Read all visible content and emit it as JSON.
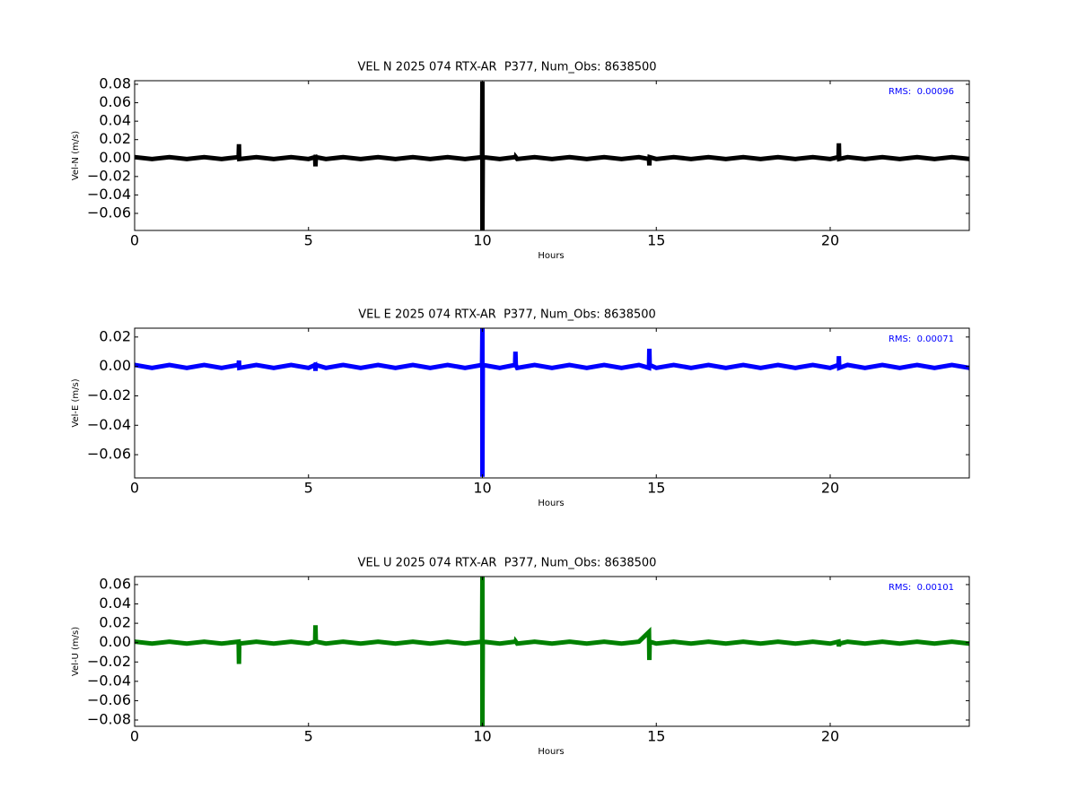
{
  "chart_data": [
    {
      "type": "line",
      "title": "VEL N 2025 074 RTX-AR  P377, Num_Obs: 8638500",
      "xlabel": "Hours",
      "ylabel": "Vel-N (m/s)",
      "annotation": "RMS:  0.00096",
      "annotation_color": "#0000ff",
      "x": [
        0,
        0.5,
        1,
        1.5,
        2,
        2.5,
        2.99,
        3,
        3.01,
        3.5,
        4,
        4.5,
        5,
        5.19,
        5.2,
        5.21,
        5.5,
        6,
        6.5,
        7,
        7.5,
        8,
        8.5,
        9,
        9.5,
        9.99,
        10,
        10,
        10.01,
        10.5,
        10.94,
        10.95,
        10.96,
        11,
        11.5,
        12,
        12.5,
        13,
        13.5,
        14,
        14.5,
        14.79,
        14.8,
        14.81,
        15,
        15.5,
        16,
        16.5,
        17,
        17.5,
        18,
        18.5,
        19,
        19.5,
        20,
        20.24,
        20.25,
        20.26,
        20.5,
        21,
        21.5,
        22,
        22.5,
        23,
        23.5,
        24
      ],
      "series": [
        {
          "color": "#000000",
          "values": [
            0.001,
            -0.001,
            0.001,
            -0.001,
            0.001,
            -0.001,
            0.001,
            0.015,
            -0.001,
            0.001,
            -0.001,
            0.001,
            -0.001,
            0.001,
            -0.009,
            0.001,
            -0.001,
            0.001,
            -0.001,
            0.001,
            -0.001,
            0.001,
            -0.001,
            0.001,
            -0.001,
            0.001,
            0.083,
            -0.078,
            0.001,
            -0.001,
            0.001,
            -0.001,
            0.001,
            -0.001,
            0.001,
            -0.001,
            0.001,
            -0.001,
            0.001,
            -0.001,
            0.001,
            -0.001,
            -0.008,
            0.001,
            -0.001,
            0.001,
            -0.001,
            0.001,
            -0.001,
            0.001,
            -0.001,
            0.001,
            -0.001,
            0.001,
            -0.001,
            0.001,
            0.016,
            -0.001,
            0.001,
            -0.001,
            0.001,
            -0.001,
            0.001,
            -0.001,
            0.001,
            -0.001
          ]
        }
      ],
      "xlim": [
        0,
        24
      ],
      "xticks": [
        0,
        5,
        10,
        15,
        20
      ],
      "ylim": [
        -0.0785,
        0.0839
      ],
      "yticks": [
        {
          "value": -0.06,
          "label": "−0.06"
        },
        {
          "value": -0.04,
          "label": "−0.04"
        },
        {
          "value": -0.02,
          "label": "−0.02"
        },
        {
          "value": 0,
          "label": "0.00"
        },
        0.02,
        0.04,
        0.06,
        0.08
      ]
    },
    {
      "type": "line",
      "title": "VEL E 2025 074 RTX-AR  P377, Num_Obs: 8638500",
      "xlabel": "Hours",
      "ylabel": "Vel-E (m/s)",
      "annotation": "RMS:  0.00071",
      "annotation_color": "#0000ff",
      "x": [
        0,
        0.5,
        1,
        1.5,
        2,
        2.5,
        2.99,
        3,
        3.01,
        3.5,
        4,
        4.5,
        5,
        5.19,
        5.2,
        5.21,
        5.5,
        6,
        6.5,
        7,
        7.5,
        8,
        8.5,
        9,
        9.5,
        9.99,
        10,
        10,
        10.01,
        10.5,
        10.94,
        10.95,
        10.96,
        11,
        11.5,
        12,
        12.5,
        13,
        13.5,
        14,
        14.5,
        14.79,
        14.8,
        14.81,
        15,
        15.5,
        16,
        16.5,
        17,
        17.5,
        18,
        18.5,
        19,
        19.5,
        20,
        20.24,
        20.25,
        20.26,
        20.5,
        21,
        21.5,
        22,
        22.5,
        23,
        23.5,
        24
      ],
      "series": [
        {
          "color": "#0000ff",
          "values": [
            0.001,
            -0.001,
            0.001,
            -0.001,
            0.001,
            -0.001,
            0.001,
            0.004,
            -0.001,
            0.001,
            -0.001,
            0.001,
            -0.001,
            0.001,
            -0.003,
            0.001,
            -0.001,
            0.001,
            -0.001,
            0.001,
            -0.001,
            0.001,
            -0.001,
            0.001,
            -0.001,
            0.001,
            0.026,
            -0.075,
            0.001,
            -0.001,
            0.001,
            0.01,
            0.001,
            -0.001,
            0.001,
            -0.001,
            0.001,
            -0.001,
            0.001,
            -0.001,
            0.001,
            -0.001,
            0.012,
            0.001,
            -0.001,
            0.001,
            -0.001,
            0.001,
            -0.001,
            0.001,
            -0.001,
            0.001,
            -0.001,
            0.001,
            -0.001,
            0.001,
            0.007,
            -0.001,
            0.001,
            -0.001,
            0.001,
            -0.001,
            0.001,
            -0.001,
            0.001,
            -0.001
          ]
        }
      ],
      "xlim": [
        0,
        24
      ],
      "xticks": [
        0,
        5,
        10,
        15,
        20
      ],
      "ylim": [
        -0.0758,
        0.026
      ],
      "yticks": [
        {
          "value": -0.06,
          "label": "−0.06"
        },
        {
          "value": -0.04,
          "label": "−0.04"
        },
        {
          "value": -0.02,
          "label": "−0.02"
        },
        {
          "value": 0,
          "label": "0.00"
        },
        0.02
      ]
    },
    {
      "type": "line",
      "title": "VEL U 2025 074 RTX-AR  P377, Num_Obs: 8638500",
      "xlabel": "Hours",
      "ylabel": "Vel-U (m/s)",
      "annotation": "RMS:  0.00101",
      "annotation_color": "#0000ff",
      "x": [
        0,
        0.5,
        1,
        1.5,
        2,
        2.5,
        2.99,
        3,
        3.01,
        3.5,
        4,
        4.5,
        5,
        5.19,
        5.2,
        5.21,
        5.5,
        6,
        6.5,
        7,
        7.5,
        8,
        8.5,
        9,
        9.5,
        9.99,
        10,
        10,
        10.01,
        10.5,
        10.94,
        10.95,
        10.96,
        11,
        11.5,
        12,
        12.5,
        13,
        13.5,
        14,
        14.5,
        14.79,
        14.8,
        14.81,
        15,
        15.5,
        16,
        16.5,
        17,
        17.5,
        18,
        18.5,
        19,
        19.5,
        20,
        20.24,
        20.25,
        20.26,
        20.5,
        21,
        21.5,
        22,
        22.5,
        23,
        23.5,
        24
      ],
      "series": [
        {
          "color": "#008000",
          "values": [
            0.001,
            -0.001,
            0.001,
            -0.001,
            0.001,
            -0.001,
            0.001,
            -0.022,
            -0.001,
            0.001,
            -0.001,
            0.001,
            -0.001,
            0.001,
            0.018,
            0.001,
            -0.001,
            0.001,
            -0.001,
            0.001,
            -0.001,
            0.001,
            -0.001,
            0.001,
            -0.001,
            0.001,
            0.068,
            -0.086,
            0.001,
            -0.001,
            0.001,
            -0.001,
            0.001,
            -0.001,
            0.001,
            -0.001,
            0.001,
            -0.001,
            0.001,
            -0.001,
            0.001,
            0.011,
            -0.018,
            0.001,
            -0.001,
            0.001,
            -0.001,
            0.001,
            -0.001,
            0.001,
            -0.001,
            0.001,
            -0.001,
            0.001,
            -0.001,
            0.001,
            -0.004,
            -0.001,
            0.001,
            -0.001,
            0.001,
            -0.001,
            0.001,
            -0.001,
            0.001,
            -0.001
          ]
        }
      ],
      "xlim": [
        0,
        24
      ],
      "xticks": [
        0,
        5,
        10,
        15,
        20
      ],
      "ylim": [
        -0.0865,
        0.0683
      ],
      "yticks": [
        {
          "value": -0.08,
          "label": "−0.08"
        },
        {
          "value": -0.06,
          "label": "−0.06"
        },
        {
          "value": -0.04,
          "label": "−0.04"
        },
        {
          "value": -0.02,
          "label": "−0.02"
        },
        {
          "value": 0,
          "label": "0.00"
        },
        0.02,
        0.04,
        0.06
      ]
    }
  ]
}
